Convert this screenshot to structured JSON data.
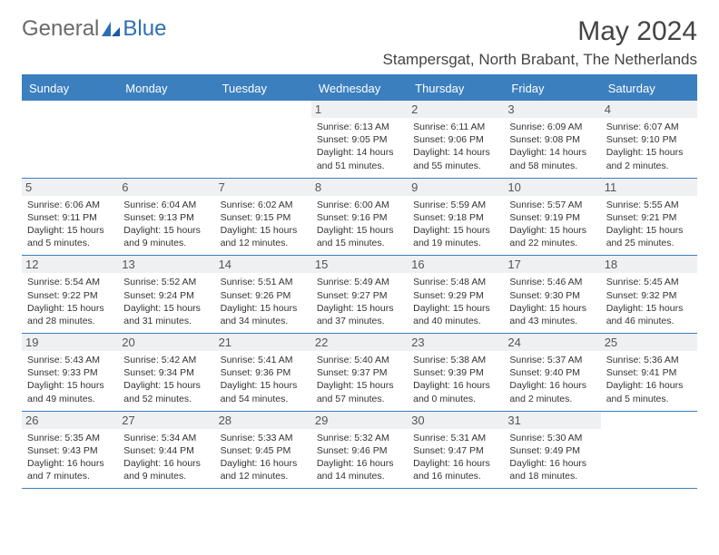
{
  "logo": {
    "text1": "General",
    "text2": "Blue"
  },
  "title": "May 2024",
  "location": "Stampersgat, North Brabant, The Netherlands",
  "colors": {
    "header_bg": "#3b7fbf",
    "header_fg": "#ffffff",
    "daynum_bg": "#eef0f2",
    "border": "#3b7fbf",
    "logo_gray": "#6a6a6a",
    "logo_blue": "#2d6fb5"
  },
  "day_names": [
    "Sunday",
    "Monday",
    "Tuesday",
    "Wednesday",
    "Thursday",
    "Friday",
    "Saturday"
  ],
  "weeks": [
    [
      {
        "n": "",
        "empty": true
      },
      {
        "n": "",
        "empty": true
      },
      {
        "n": "",
        "empty": true
      },
      {
        "n": "1",
        "sr": "Sunrise: 6:13 AM",
        "ss": "Sunset: 9:05 PM",
        "dl": "Daylight: 14 hours and 51 minutes."
      },
      {
        "n": "2",
        "sr": "Sunrise: 6:11 AM",
        "ss": "Sunset: 9:06 PM",
        "dl": "Daylight: 14 hours and 55 minutes."
      },
      {
        "n": "3",
        "sr": "Sunrise: 6:09 AM",
        "ss": "Sunset: 9:08 PM",
        "dl": "Daylight: 14 hours and 58 minutes."
      },
      {
        "n": "4",
        "sr": "Sunrise: 6:07 AM",
        "ss": "Sunset: 9:10 PM",
        "dl": "Daylight: 15 hours and 2 minutes."
      }
    ],
    [
      {
        "n": "5",
        "sr": "Sunrise: 6:06 AM",
        "ss": "Sunset: 9:11 PM",
        "dl": "Daylight: 15 hours and 5 minutes."
      },
      {
        "n": "6",
        "sr": "Sunrise: 6:04 AM",
        "ss": "Sunset: 9:13 PM",
        "dl": "Daylight: 15 hours and 9 minutes."
      },
      {
        "n": "7",
        "sr": "Sunrise: 6:02 AM",
        "ss": "Sunset: 9:15 PM",
        "dl": "Daylight: 15 hours and 12 minutes."
      },
      {
        "n": "8",
        "sr": "Sunrise: 6:00 AM",
        "ss": "Sunset: 9:16 PM",
        "dl": "Daylight: 15 hours and 15 minutes."
      },
      {
        "n": "9",
        "sr": "Sunrise: 5:59 AM",
        "ss": "Sunset: 9:18 PM",
        "dl": "Daylight: 15 hours and 19 minutes."
      },
      {
        "n": "10",
        "sr": "Sunrise: 5:57 AM",
        "ss": "Sunset: 9:19 PM",
        "dl": "Daylight: 15 hours and 22 minutes."
      },
      {
        "n": "11",
        "sr": "Sunrise: 5:55 AM",
        "ss": "Sunset: 9:21 PM",
        "dl": "Daylight: 15 hours and 25 minutes."
      }
    ],
    [
      {
        "n": "12",
        "sr": "Sunrise: 5:54 AM",
        "ss": "Sunset: 9:22 PM",
        "dl": "Daylight: 15 hours and 28 minutes."
      },
      {
        "n": "13",
        "sr": "Sunrise: 5:52 AM",
        "ss": "Sunset: 9:24 PM",
        "dl": "Daylight: 15 hours and 31 minutes."
      },
      {
        "n": "14",
        "sr": "Sunrise: 5:51 AM",
        "ss": "Sunset: 9:26 PM",
        "dl": "Daylight: 15 hours and 34 minutes."
      },
      {
        "n": "15",
        "sr": "Sunrise: 5:49 AM",
        "ss": "Sunset: 9:27 PM",
        "dl": "Daylight: 15 hours and 37 minutes."
      },
      {
        "n": "16",
        "sr": "Sunrise: 5:48 AM",
        "ss": "Sunset: 9:29 PM",
        "dl": "Daylight: 15 hours and 40 minutes."
      },
      {
        "n": "17",
        "sr": "Sunrise: 5:46 AM",
        "ss": "Sunset: 9:30 PM",
        "dl": "Daylight: 15 hours and 43 minutes."
      },
      {
        "n": "18",
        "sr": "Sunrise: 5:45 AM",
        "ss": "Sunset: 9:32 PM",
        "dl": "Daylight: 15 hours and 46 minutes."
      }
    ],
    [
      {
        "n": "19",
        "sr": "Sunrise: 5:43 AM",
        "ss": "Sunset: 9:33 PM",
        "dl": "Daylight: 15 hours and 49 minutes."
      },
      {
        "n": "20",
        "sr": "Sunrise: 5:42 AM",
        "ss": "Sunset: 9:34 PM",
        "dl": "Daylight: 15 hours and 52 minutes."
      },
      {
        "n": "21",
        "sr": "Sunrise: 5:41 AM",
        "ss": "Sunset: 9:36 PM",
        "dl": "Daylight: 15 hours and 54 minutes."
      },
      {
        "n": "22",
        "sr": "Sunrise: 5:40 AM",
        "ss": "Sunset: 9:37 PM",
        "dl": "Daylight: 15 hours and 57 minutes."
      },
      {
        "n": "23",
        "sr": "Sunrise: 5:38 AM",
        "ss": "Sunset: 9:39 PM",
        "dl": "Daylight: 16 hours and 0 minutes."
      },
      {
        "n": "24",
        "sr": "Sunrise: 5:37 AM",
        "ss": "Sunset: 9:40 PM",
        "dl": "Daylight: 16 hours and 2 minutes."
      },
      {
        "n": "25",
        "sr": "Sunrise: 5:36 AM",
        "ss": "Sunset: 9:41 PM",
        "dl": "Daylight: 16 hours and 5 minutes."
      }
    ],
    [
      {
        "n": "26",
        "sr": "Sunrise: 5:35 AM",
        "ss": "Sunset: 9:43 PM",
        "dl": "Daylight: 16 hours and 7 minutes."
      },
      {
        "n": "27",
        "sr": "Sunrise: 5:34 AM",
        "ss": "Sunset: 9:44 PM",
        "dl": "Daylight: 16 hours and 9 minutes."
      },
      {
        "n": "28",
        "sr": "Sunrise: 5:33 AM",
        "ss": "Sunset: 9:45 PM",
        "dl": "Daylight: 16 hours and 12 minutes."
      },
      {
        "n": "29",
        "sr": "Sunrise: 5:32 AM",
        "ss": "Sunset: 9:46 PM",
        "dl": "Daylight: 16 hours and 14 minutes."
      },
      {
        "n": "30",
        "sr": "Sunrise: 5:31 AM",
        "ss": "Sunset: 9:47 PM",
        "dl": "Daylight: 16 hours and 16 minutes."
      },
      {
        "n": "31",
        "sr": "Sunrise: 5:30 AM",
        "ss": "Sunset: 9:49 PM",
        "dl": "Daylight: 16 hours and 18 minutes."
      },
      {
        "n": "",
        "empty": true
      }
    ]
  ]
}
